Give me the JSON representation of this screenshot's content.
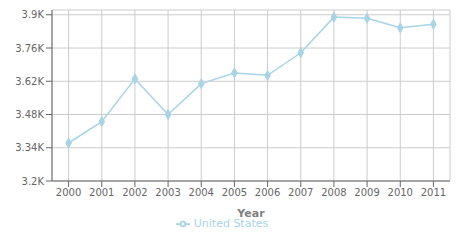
{
  "chart_data": {
    "type": "line",
    "xlabel": "Year",
    "x": [
      2000,
      2001,
      2002,
      2003,
      2004,
      2005,
      2006,
      2007,
      2008,
      2009,
      2010,
      2011
    ],
    "series": [
      {
        "name": "United States",
        "color": "#a8d4e6",
        "marker": "diamond",
        "values": [
          3360,
          3450,
          3630,
          3480,
          3610,
          3655,
          3645,
          3740,
          3890,
          3885,
          3845,
          3860
        ]
      }
    ],
    "xlim": [
      1999.5,
      2011.5
    ],
    "xticks": [
      2000,
      2001,
      2002,
      2003,
      2004,
      2005,
      2006,
      2007,
      2008,
      2009,
      2010,
      2011
    ],
    "ylim": [
      3200,
      3920
    ],
    "yticks": [
      {
        "value": 3200,
        "label": "3.2K"
      },
      {
        "value": 3340,
        "label": "3.34K"
      },
      {
        "value": 3480,
        "label": "3.48K"
      },
      {
        "value": 3620,
        "label": "3.62K"
      },
      {
        "value": 3760,
        "label": "3.76K"
      },
      {
        "value": 3900,
        "label": "3.9K"
      }
    ],
    "grid": true,
    "legend": "bottom"
  }
}
